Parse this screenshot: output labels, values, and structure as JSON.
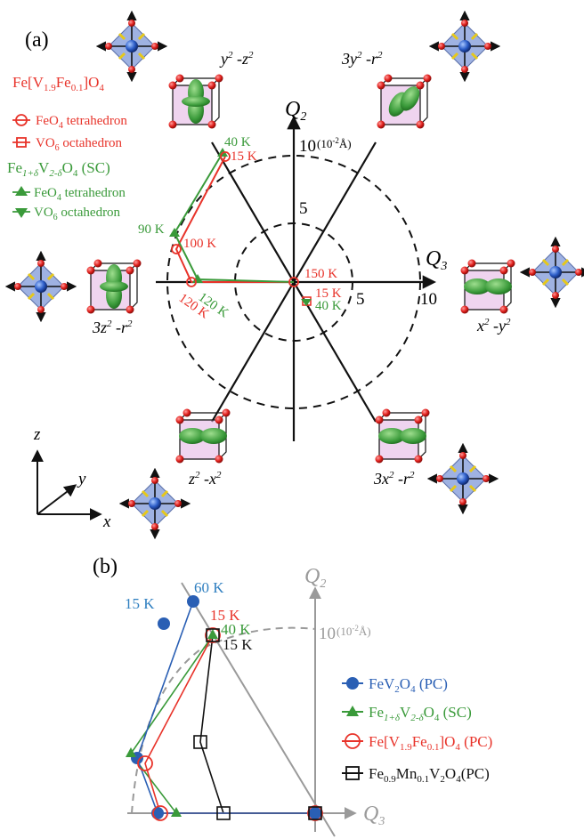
{
  "panel_a": {
    "label": "(a)",
    "axis_q2": "Q",
    "axis_q2_sub": "2",
    "axis_q3": "Q",
    "axis_q3_sub": "3",
    "tick_10_top": "10",
    "unit_top": "(10",
    "unit_top_exp": "-2",
    "unit_top_tail": "Å)",
    "tick_5_top": "5",
    "tick_5_right": "5",
    "tick_10_right": "10",
    "orbital_labels": {
      "y2z2": "y² -z²",
      "y2z2_a": "y",
      "y2z2_b": "2",
      "y2z2_c": " -z",
      "y2z2_d": "2",
      "r_3y2": "3y",
      "r_3y2_b": "2",
      "r_3y2_c": " -r",
      "r_3y2_d": "2",
      "r_3z2": "3z",
      "r_3z2_b": "2",
      "r_3z2_c": " -r",
      "r_3z2_d": "2",
      "x2y2": "x",
      "x2y2_b": "2",
      "x2y2_c": " -y",
      "x2y2_d": "2",
      "z2x2": "z",
      "z2x2_b": "2",
      "z2x2_c": " -x",
      "z2x2_d": "2",
      "r_3x2": "3x",
      "r_3x2_b": "2",
      "r_3x2_c": " -r",
      "r_3x2_d": "2"
    },
    "legend": {
      "title1": "Fe[V",
      "title1_s1": "1.9",
      "title1_m": "Fe",
      "title1_s2": "0.1",
      "title1_e": "]O",
      "title1_s3": "4",
      "item1": "FeO",
      "item1_s": "4",
      "item1_e": " tetrahedron",
      "item2": "VO",
      "item2_s": "6",
      "item2_e": " octahedron",
      "title2": "Fe",
      "title2_s1": "1+δ",
      "title2_m": "V",
      "title2_s2": "2-δ",
      "title2_e": "O",
      "title2_s3": "4",
      "title2_tail": " (SC)",
      "item3": "FeO",
      "item3_s": "4",
      "item3_e": " tetrahedron",
      "item4": "VO",
      "item4_s": "6",
      "item4_e": " octahedron"
    },
    "temps": {
      "t40_green_top": "40 K",
      "t15_red_top": "15 K",
      "t90_green": "90 K",
      "t100_red": "100 K",
      "t120_green": "120 K",
      "t120_red": "120 K",
      "t150_red": "150 K",
      "t15_red_center": "15 K",
      "t40_green_center": "40 K"
    },
    "coord_axes": {
      "z": "z",
      "y": "y",
      "x": "x"
    }
  },
  "panel_b": {
    "label": "(b)",
    "axis_q2": "Q",
    "axis_q2_sub": "2",
    "axis_q3": "Q",
    "axis_q3_sub": "3",
    "tick_10": "10",
    "unit": "(10",
    "unit_exp": "-2",
    "unit_tail": "Å)",
    "temps": {
      "t15_blue": "15 K",
      "t60_blue": "60 K",
      "t15_red": "15 K",
      "t40_green": "40 K",
      "t15_black": "15 K"
    },
    "legend": {
      "l1": "FeV",
      "l1_s1": "2",
      "l1_m": "O",
      "l1_s2": "4",
      "l1_e": " (PC)",
      "l2": "Fe",
      "l2_s1": "1+δ",
      "l2_m": "V",
      "l2_s2": "2-δ",
      "l2_m2": "O",
      "l2_s3": "4",
      "l2_e": " (SC)",
      "l3": "Fe[V",
      "l3_s1": "1.9",
      "l3_m": "Fe",
      "l3_s2": "0.1",
      "l3_m2": "]O",
      "l3_s3": "4",
      "l3_e": " (PC)",
      "l4": "Fe",
      "l4_s1": "0.9",
      "l4_m": "Mn",
      "l4_s2": "0.1",
      "l4_m2": "V",
      "l4_s3": "2",
      "l4_m3": "O",
      "l4_s4": "4",
      "l4_e": "(PC)"
    }
  },
  "colors": {
    "red": "#e8332a",
    "green": "#3a9a3a",
    "blue": "#2a5fb4",
    "black": "#111111",
    "gray": "#9a9a9a",
    "blue_text": "#2f7fc0",
    "octa": "#7f98d8",
    "purple": "#d8a0d8",
    "orbital": "#3f9e3f"
  }
}
